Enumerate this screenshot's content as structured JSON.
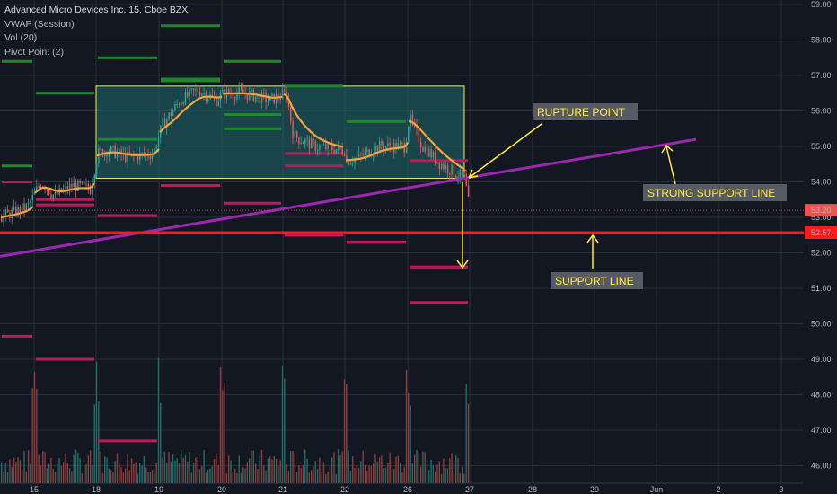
{
  "legend": {
    "title": "Advanced Micro Devices Inc, 15, Cboe BZX",
    "indicators": [
      "VWAP (Session)",
      "Vol (20)",
      "Pivot Point (2)"
    ]
  },
  "colors": {
    "background": "#131722",
    "grid": "#2a2e39",
    "candle_up": "#26a69a",
    "candle_down": "#ef5350",
    "vwap": "#f5a33a",
    "trendline": "#9c27b0",
    "support": "#ff1a1a",
    "box": "#1f6a6a",
    "box_border": "#f0f05a",
    "annotation": "#ffeb3b",
    "label_bg": "#555a66"
  },
  "chart_data": {
    "type": "candlestick",
    "y_axis": {
      "ticks": [
        59,
        58,
        57,
        56,
        55,
        54,
        53,
        52,
        51,
        50,
        49,
        48,
        47,
        46
      ],
      "tick_labels": [
        "59.00",
        "58.00",
        "57.00",
        "56.00",
        "55.00",
        "54.00",
        "53.00",
        "52.00",
        "51.00",
        "50.00",
        "49.00",
        "48.00",
        "47.00",
        "46.00"
      ],
      "range": [
        45.9,
        59.1
      ]
    },
    "x_axis": {
      "tick_labels": [
        "15",
        "18",
        "19",
        "20",
        "21",
        "22",
        "26",
        "27",
        "28",
        "29",
        "Jun",
        "2",
        "3"
      ]
    },
    "price_labels": [
      {
        "value": 53.2,
        "text": "53.20",
        "color": "#ef5350"
      },
      {
        "value": 52.57,
        "text": "52.57",
        "color": "#ff1a1a"
      }
    ],
    "consolidation_box": {
      "from": "18",
      "to": "27",
      "high": 56.7,
      "low": 54.1
    },
    "trendline": {
      "start_price": 51.9,
      "end_price": 55.2
    },
    "support_line": 52.57,
    "annotations": [
      {
        "text": "RUPTURE POINT"
      },
      {
        "text": "STRONG SUPPORT LINE"
      },
      {
        "text": "SUPPORT LINE"
      }
    ],
    "pivot_levels": [
      {
        "price": 54.45,
        "color": "#1b8a2f"
      },
      {
        "price": 53.35,
        "color": "#c2185b"
      },
      {
        "price": 53.05,
        "color": "#c2185b"
      },
      {
        "price": 56.85,
        "color": "#1b8a2f"
      },
      {
        "price": 55.5,
        "color": "#1b8a2f"
      },
      {
        "price": 54.45,
        "color": "#c2185b"
      },
      {
        "price": 52.3,
        "color": "#c2185b"
      },
      {
        "price": 50.6,
        "color": "#c2185b"
      },
      {
        "price": 49.65,
        "color": "#c2185b"
      },
      {
        "price": 49.0,
        "color": "#c2185b"
      },
      {
        "price": 46.7,
        "color": "#c2185b"
      },
      {
        "price": 58.4,
        "color": "#1b8a2f"
      },
      {
        "price": 57.4,
        "color": "#1b8a2f"
      },
      {
        "price": 56.7,
        "color": "#1b8a2f"
      },
      {
        "price": 55.7,
        "color": "#1b8a2f"
      },
      {
        "price": 54.6,
        "color": "#c2185b"
      },
      {
        "price": 54.0,
        "color": "#c2185b"
      },
      {
        "price": 53.5,
        "color": "#c2185b"
      },
      {
        "price": 57.5,
        "color": "#1b8a2f"
      },
      {
        "price": 56.9,
        "color": "#1b8a2f"
      },
      {
        "price": 55.9,
        "color": "#1b8a2f"
      },
      {
        "price": 54.8,
        "color": "#c2185b"
      },
      {
        "price": 52.3,
        "color": "#c2185b"
      },
      {
        "price": 51.6,
        "color": "#c2185b"
      },
      {
        "price": 57.4,
        "color": "#1b8a2f"
      },
      {
        "price": 56.5,
        "color": "#1b8a2f"
      },
      {
        "price": 55.2,
        "color": "#1b8a2f"
      },
      {
        "price": 53.9,
        "color": "#c2185b"
      },
      {
        "price": 53.4,
        "color": "#c2185b"
      },
      {
        "price": 52.5,
        "color": "#c2185b"
      }
    ]
  }
}
